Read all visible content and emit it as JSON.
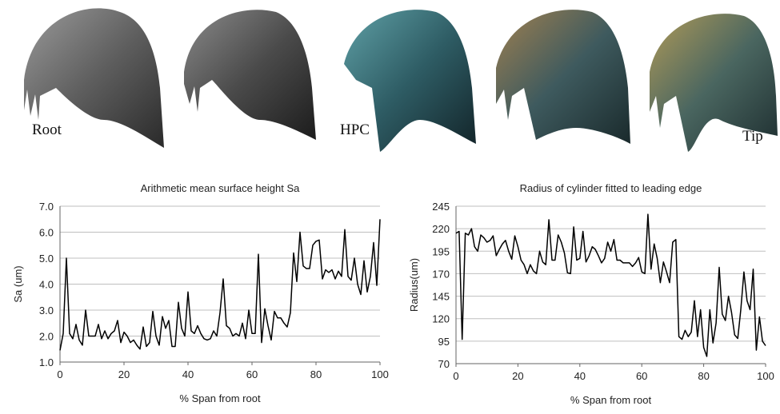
{
  "images": {
    "labels": [
      "Root",
      "HPC",
      "Tip"
    ]
  },
  "chart_data": [
    {
      "type": "line",
      "title": "Arithmetic mean surface height Sa",
      "xlabel": "% Span from root",
      "ylabel": "Sa (um)",
      "x": [
        0,
        1,
        2,
        3,
        4,
        5,
        6,
        7,
        8,
        9,
        10,
        11,
        12,
        13,
        14,
        15,
        16,
        17,
        18,
        19,
        20,
        21,
        22,
        23,
        24,
        25,
        26,
        27,
        28,
        29,
        30,
        31,
        32,
        33,
        34,
        35,
        36,
        37,
        38,
        39,
        40,
        41,
        42,
        43,
        44,
        45,
        46,
        47,
        48,
        49,
        50,
        51,
        52,
        53,
        54,
        55,
        56,
        57,
        58,
        59,
        60,
        61,
        62,
        63,
        64,
        65,
        66,
        67,
        68,
        69,
        70,
        71,
        72,
        73,
        74,
        75,
        76,
        77,
        78,
        79,
        80,
        81,
        82,
        83,
        84,
        85,
        86,
        87,
        88,
        89,
        90,
        91,
        92,
        93,
        94,
        95,
        96,
        97,
        98,
        99,
        100
      ],
      "values": [
        1.45,
        2.1,
        5.0,
        2.1,
        1.9,
        2.45,
        1.85,
        1.65,
        3.0,
        2.0,
        2.0,
        2.0,
        2.45,
        1.9,
        2.2,
        1.9,
        2.1,
        2.2,
        2.6,
        1.75,
        2.15,
        2.0,
        1.75,
        1.85,
        1.65,
        1.5,
        2.35,
        1.6,
        1.75,
        2.95,
        2.0,
        1.65,
        2.75,
        2.3,
        2.6,
        1.6,
        1.6,
        3.3,
        2.3,
        2.0,
        3.7,
        2.2,
        2.1,
        2.4,
        2.1,
        1.9,
        1.85,
        1.9,
        2.2,
        2.0,
        2.9,
        4.2,
        2.4,
        2.3,
        2.0,
        2.1,
        2.0,
        2.5,
        1.9,
        3.0,
        2.1,
        2.1,
        5.15,
        1.75,
        3.05,
        2.4,
        1.85,
        2.95,
        2.7,
        2.7,
        2.5,
        2.35,
        2.9,
        5.2,
        4.1,
        6.0,
        4.7,
        4.6,
        4.6,
        5.5,
        5.65,
        5.7,
        4.2,
        4.55,
        4.45,
        4.55,
        4.2,
        4.5,
        4.3,
        6.1,
        4.3,
        4.15,
        5.0,
        4.0,
        3.6,
        4.9,
        3.7,
        4.3,
        5.6,
        3.95,
        6.5
      ],
      "color": "#000000",
      "grid": true,
      "xlim": [
        0,
        100
      ],
      "xticks": [
        0,
        20,
        40,
        60,
        80,
        100
      ],
      "ylim": [
        1,
        7
      ],
      "yticks": [
        {
          "value": 1,
          "label": "1.0"
        },
        {
          "value": 2,
          "label": "2.0"
        },
        {
          "value": 3,
          "label": "3.0"
        },
        {
          "value": 4,
          "label": "4.0"
        },
        {
          "value": 5,
          "label": "5.0"
        },
        {
          "value": 6,
          "label": "6.0"
        },
        {
          "value": 7,
          "label": "7.0"
        }
      ]
    },
    {
      "type": "line",
      "title": "Radius of cylinder fitted to leading edge",
      "xlabel": "% Span from root",
      "ylabel": "Radius(um)",
      "x": [
        0,
        1,
        2,
        3,
        4,
        5,
        6,
        7,
        8,
        9,
        10,
        11,
        12,
        13,
        14,
        15,
        16,
        17,
        18,
        19,
        20,
        21,
        22,
        23,
        24,
        25,
        26,
        27,
        28,
        29,
        30,
        31,
        32,
        33,
        34,
        35,
        36,
        37,
        38,
        39,
        40,
        41,
        42,
        43,
        44,
        45,
        46,
        47,
        48,
        49,
        50,
        51,
        52,
        53,
        54,
        55,
        56,
        57,
        58,
        59,
        60,
        61,
        62,
        63,
        64,
        65,
        66,
        67,
        68,
        69,
        70,
        71,
        72,
        73,
        74,
        75,
        76,
        77,
        78,
        79,
        80,
        81,
        82,
        83,
        84,
        85,
        86,
        87,
        88,
        89,
        90,
        91,
        92,
        93,
        94,
        95,
        96,
        97,
        98,
        99,
        100
      ],
      "values": [
        215,
        217,
        97,
        215,
        213,
        220,
        200,
        195,
        213,
        210,
        205,
        207,
        212,
        190,
        197,
        203,
        207,
        195,
        186,
        212,
        200,
        185,
        180,
        170,
        180,
        173,
        170,
        195,
        183,
        180,
        230,
        185,
        185,
        213,
        205,
        193,
        171,
        170,
        222,
        185,
        187,
        217,
        183,
        190,
        200,
        197,
        190,
        182,
        187,
        205,
        195,
        208,
        185,
        185,
        182,
        182,
        182,
        178,
        182,
        188,
        172,
        170,
        236,
        175,
        203,
        187,
        160,
        183,
        172,
        160,
        205,
        208,
        100,
        97,
        107,
        100,
        105,
        140,
        100,
        130,
        88,
        78,
        130,
        93,
        115,
        177,
        125,
        118,
        145,
        127,
        102,
        98,
        130,
        172,
        140,
        130,
        175,
        85,
        122,
        95,
        90
      ],
      "color": "#000000",
      "grid": true,
      "xlim": [
        0,
        100
      ],
      "xticks": [
        0,
        20,
        40,
        60,
        80,
        100
      ],
      "ylim": [
        70,
        245
      ],
      "yticks": [
        70,
        95,
        120,
        145,
        170,
        195,
        220,
        245
      ]
    }
  ]
}
